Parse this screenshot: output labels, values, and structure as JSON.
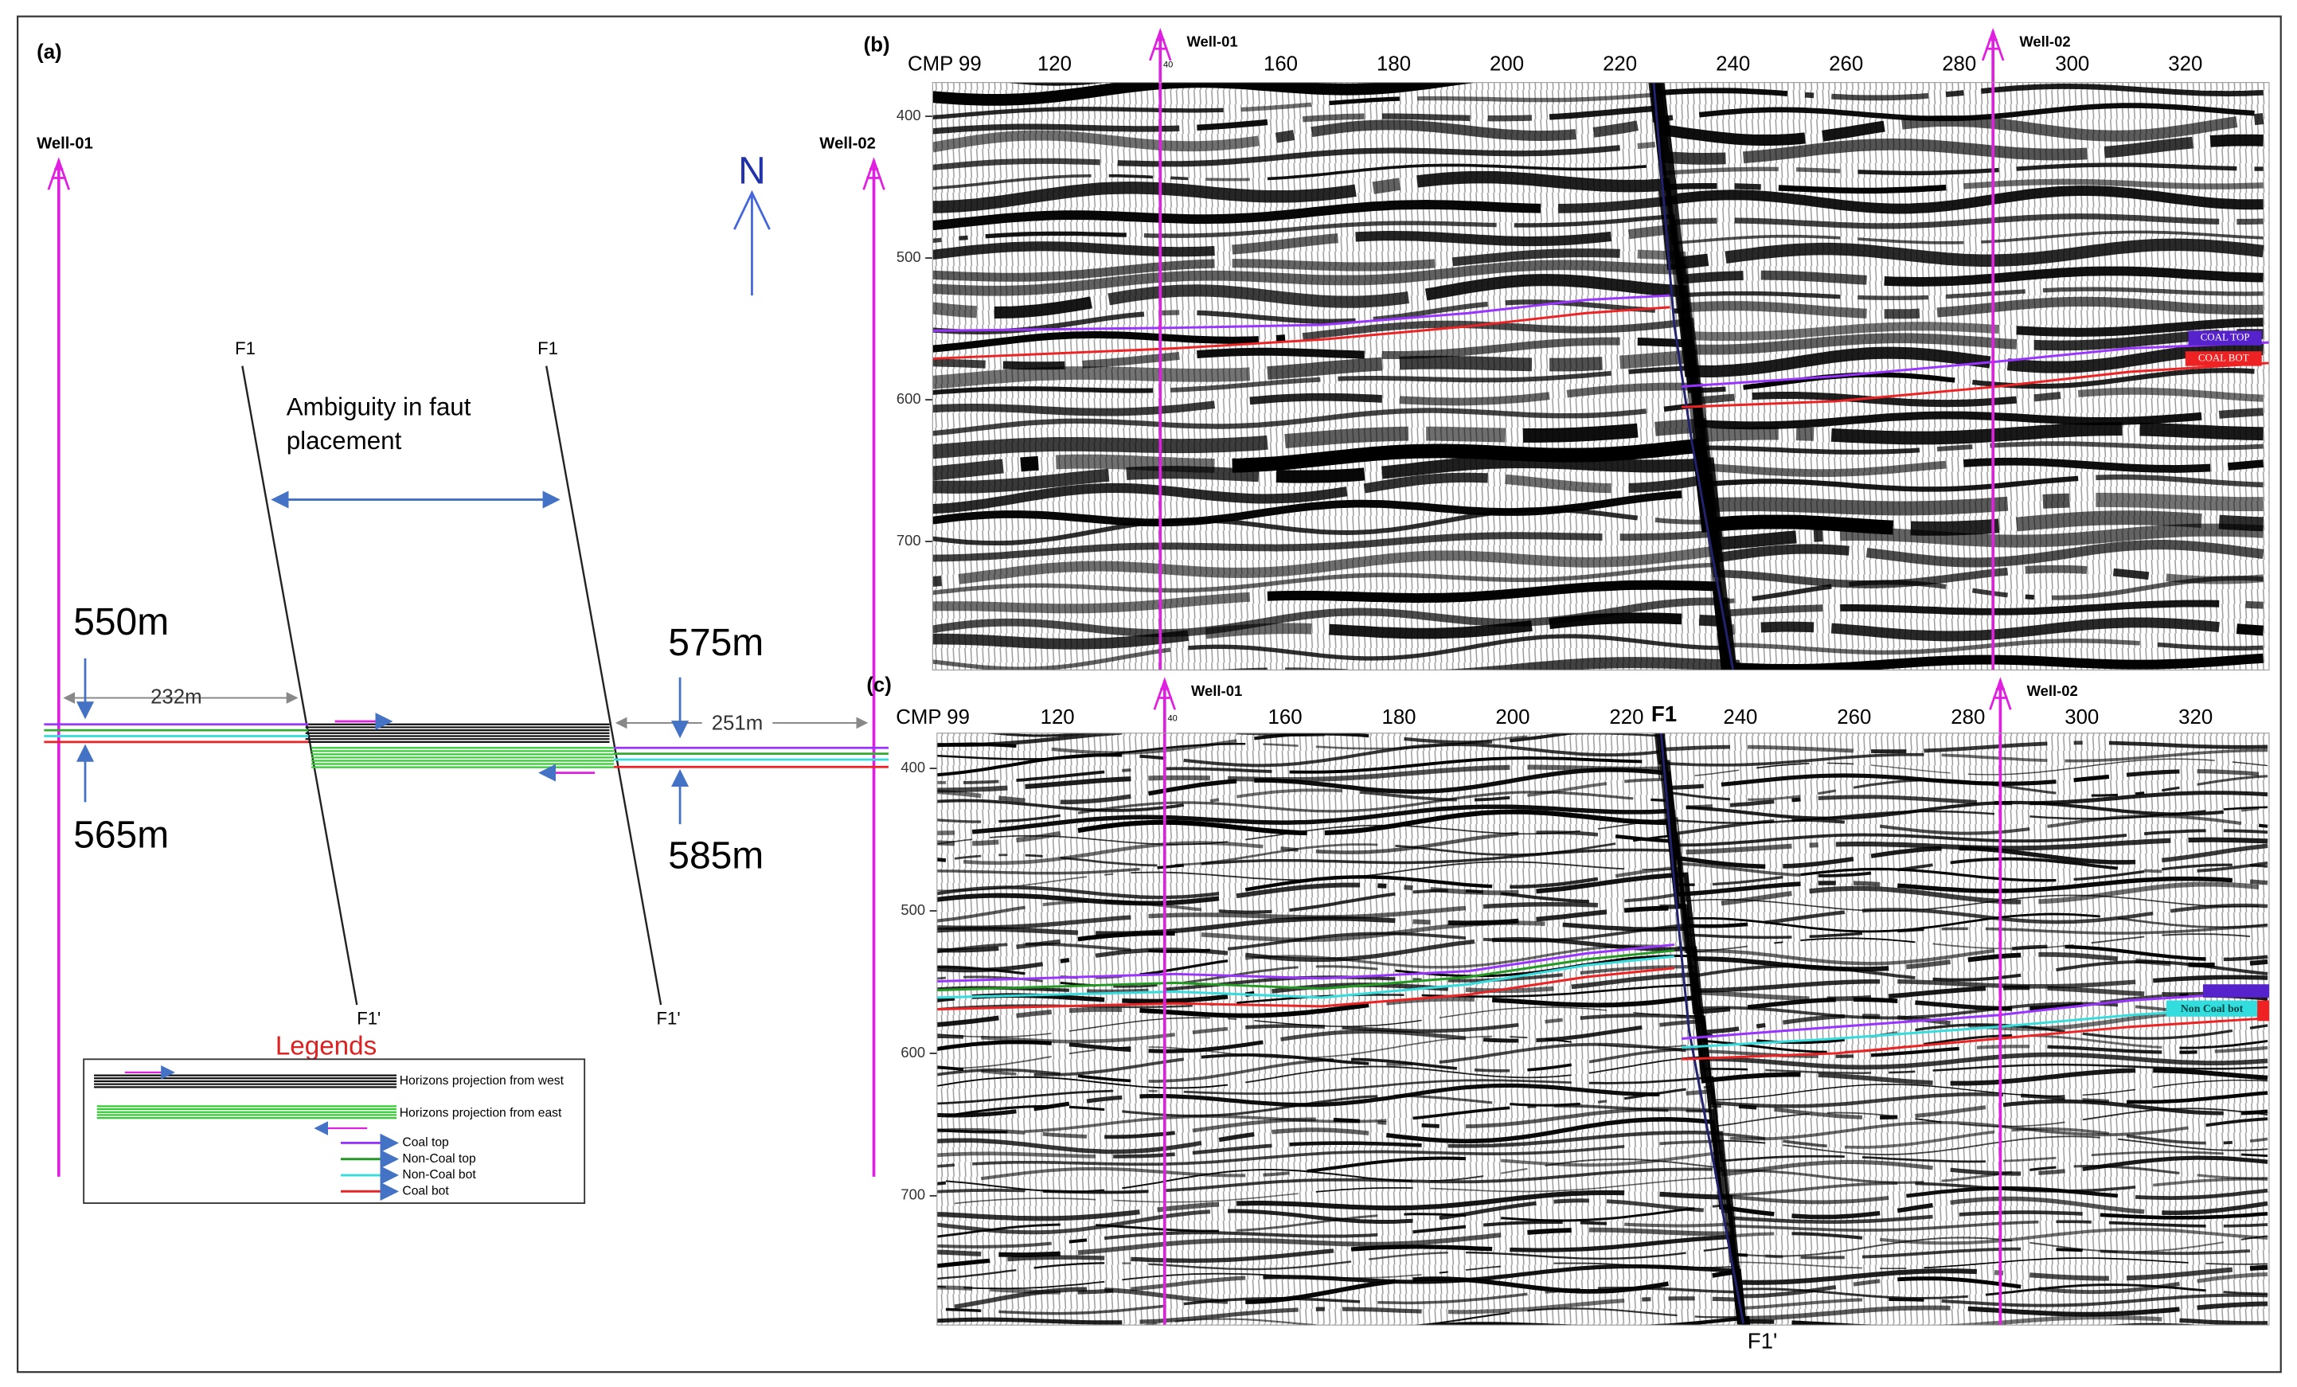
{
  "panel_a": {
    "label": "(a)",
    "wells": [
      "Well-01",
      "Well-02"
    ],
    "north": "N",
    "faults": [
      "F1",
      "F1"
    ],
    "fault_ends": [
      "F1'",
      "F1'"
    ],
    "annotation": [
      "Ambiguity in faut",
      "placement"
    ],
    "depths": [
      "550m",
      "565m",
      "575m",
      "585m"
    ],
    "distances": [
      "232m",
      "251m"
    ],
    "legend": {
      "title": "Legends",
      "items": [
        "Horizons projection from west",
        "Horizons projection from east",
        "Coal top",
        "Non-Coal top",
        "Non-Coal bot",
        "Coal bot"
      ]
    }
  },
  "panel_b": {
    "label": "(b)",
    "x_axis_title": "CMP 99",
    "x_ticks": [
      120,
      160,
      180,
      200,
      220,
      240,
      260,
      280,
      300,
      320
    ],
    "y_ticks": [
      400,
      500,
      600,
      700
    ],
    "wells": [
      "Well-01",
      "Well-02"
    ],
    "well_mark": "40",
    "horizon_labels": [
      "COAL TOP",
      "COAL BOT"
    ]
  },
  "panel_c": {
    "label": "(c)",
    "x_axis_title": "CMP 99",
    "x_ticks": [
      120,
      160,
      180,
      200,
      220,
      240,
      260,
      280,
      300,
      320
    ],
    "y_ticks": [
      400,
      500,
      600,
      700
    ],
    "wells": [
      "Well-01",
      "Well-02"
    ],
    "well_mark": "40",
    "fault": "F1",
    "fault_end": "F1'",
    "horizon_labels": [
      "Non Coal bot"
    ]
  }
}
